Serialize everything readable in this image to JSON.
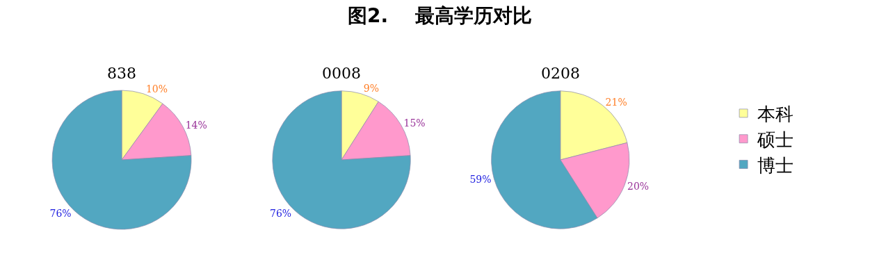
{
  "chart_data": [
    {
      "type": "pie",
      "title": "838",
      "annotations": [
        "图2.    最高学历对比"
      ],
      "categories": [
        "本科",
        "硕士",
        "博士"
      ],
      "values": [
        10,
        14,
        76
      ],
      "value_labels": [
        "10%",
        "14%",
        "76%"
      ],
      "colors": [
        "#ffff99",
        "#ff99cc",
        "#52a7c1"
      ],
      "legend": "right"
    },
    {
      "type": "pie",
      "title": "0008",
      "categories": [
        null,
        null,
        null
      ],
      "values": [
        9,
        15,
        76
      ],
      "value_labels": [
        "9%",
        "15%",
        "76%"
      ],
      "colors": [
        "#ffff99",
        "#ff99cc",
        "#52a7c1"
      ]
    },
    {
      "type": "pie",
      "title": "0208",
      "categories": [
        null,
        null,
        null
      ],
      "values": [
        21,
        20,
        59
      ],
      "value_labels": [
        "21%",
        "20%",
        "59%"
      ],
      "colors": [
        "#ffff99",
        "#ff99cc",
        "#52a7c1"
      ]
    }
  ]
}
